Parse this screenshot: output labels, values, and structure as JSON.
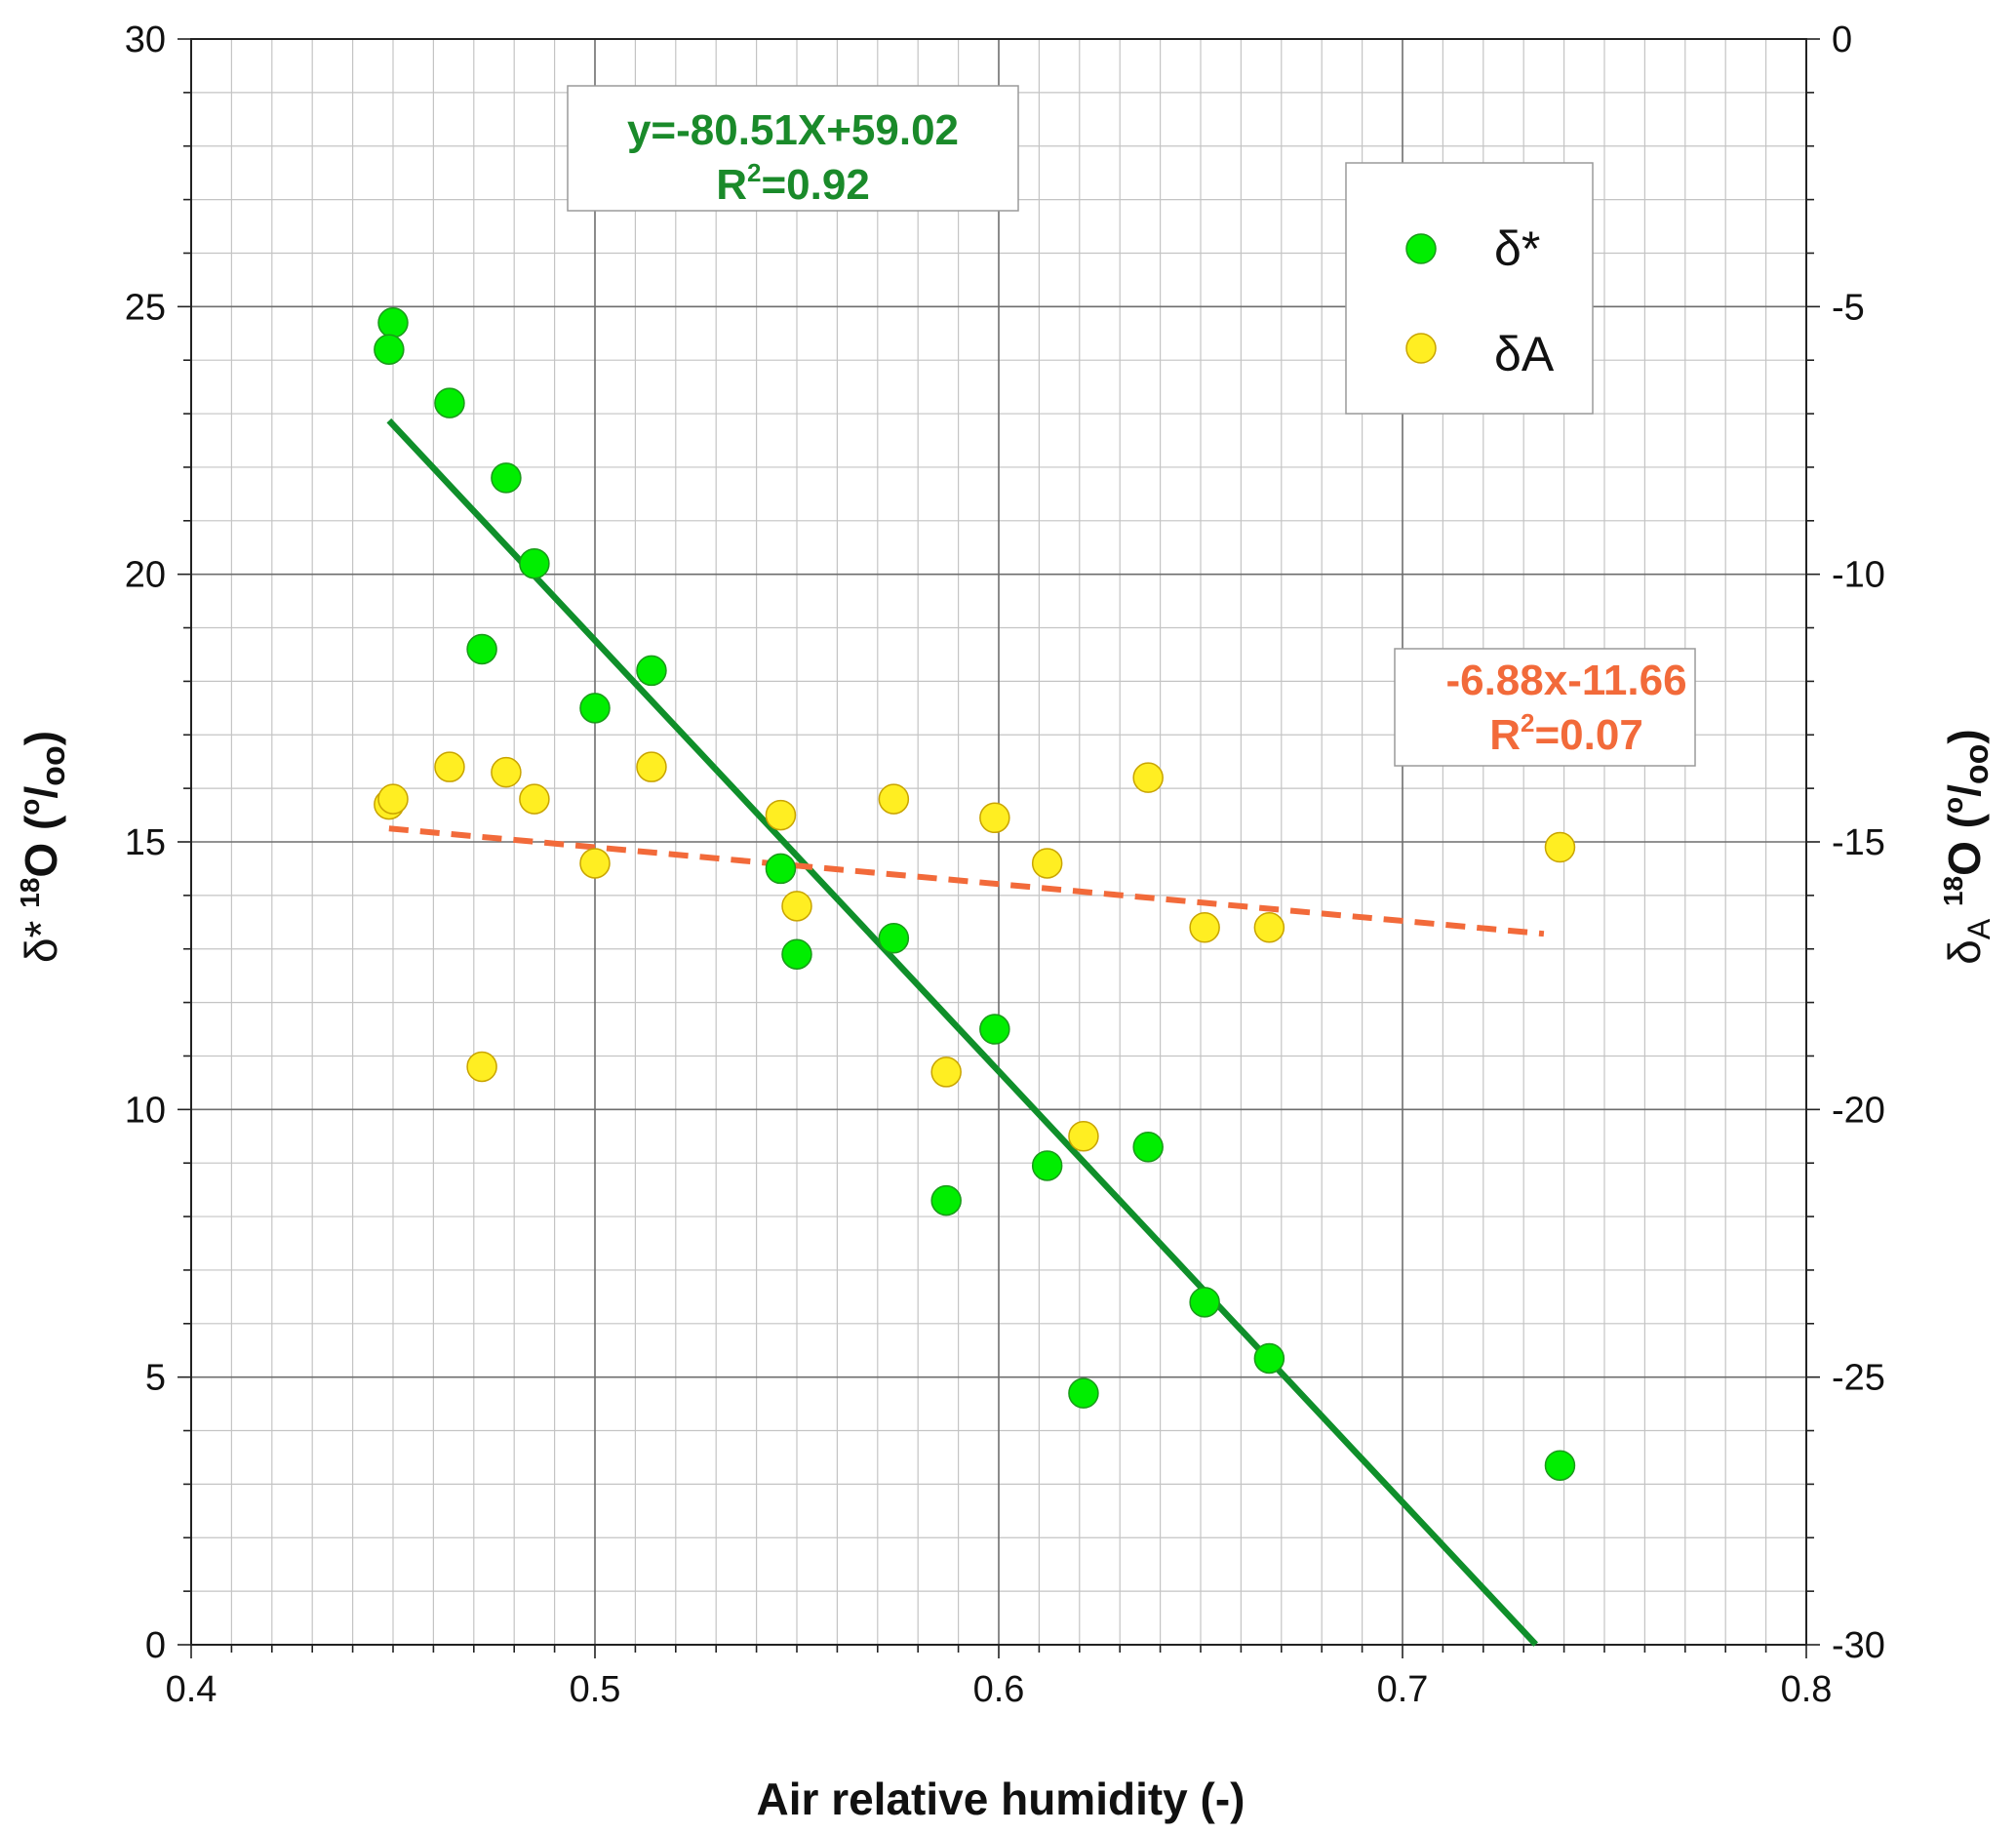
{
  "chart_data": {
    "type": "scatter",
    "xlabel": "Air relative humidity (-)",
    "ylabel_left": {
      "symbol": "δ",
      "sub": "*",
      "sup": "18",
      "text": "O (",
      "unit_sup": "o",
      "slash": "/",
      "unit_sub": "oo",
      "close": ")"
    },
    "ylabel_right": {
      "symbol": "δ",
      "sub": "A",
      "sup": "18",
      "text": "O (",
      "unit_sup": "o",
      "slash": "/",
      "unit_sub": "oo",
      "close": ")"
    },
    "xlim": [
      0.4,
      0.8
    ],
    "ylim_left": [
      0,
      30
    ],
    "ylim_right": [
      -30,
      0
    ],
    "x_ticks": [
      "0.4",
      "0.5",
      "0.6",
      "0.7",
      "0.8"
    ],
    "y_ticks_left": [
      "0",
      "5",
      "10",
      "15",
      "20",
      "25",
      "30"
    ],
    "y_ticks_right": [
      "-30",
      "-25",
      "-20",
      "-15",
      "-10",
      "-5",
      "0"
    ],
    "grid": true,
    "legend_position": "top-right",
    "series": [
      {
        "name": "δ*",
        "legend_symbol": "δ",
        "legend_suffix": "*",
        "axis": "left",
        "color": "#00ee00",
        "edge": "#1a9a1a",
        "points": [
          [
            0.45,
            24.7
          ],
          [
            0.449,
            24.2
          ],
          [
            0.464,
            23.2
          ],
          [
            0.478,
            21.8
          ],
          [
            0.485,
            20.2
          ],
          [
            0.472,
            18.6
          ],
          [
            0.514,
            18.2
          ],
          [
            0.5,
            17.5
          ],
          [
            0.546,
            14.5
          ],
          [
            0.55,
            12.9
          ],
          [
            0.574,
            13.2
          ],
          [
            0.599,
            11.5
          ],
          [
            0.587,
            8.3
          ],
          [
            0.612,
            8.95
          ],
          [
            0.637,
            9.3
          ],
          [
            0.621,
            4.7
          ],
          [
            0.651,
            6.4
          ],
          [
            0.667,
            5.35
          ],
          [
            0.739,
            3.35
          ]
        ]
      },
      {
        "name": "δA",
        "legend_symbol": "δ",
        "legend_suffix": "A",
        "axis": "right",
        "color": "#ffee22",
        "edge": "#c9a400",
        "points": [
          [
            0.449,
            -14.3
          ],
          [
            0.45,
            -14.2
          ],
          [
            0.464,
            -13.6
          ],
          [
            0.478,
            -13.7
          ],
          [
            0.485,
            -14.2
          ],
          [
            0.472,
            -19.2
          ],
          [
            0.5,
            -15.4
          ],
          [
            0.514,
            -13.6
          ],
          [
            0.546,
            -14.5
          ],
          [
            0.55,
            -16.2
          ],
          [
            0.574,
            -14.2
          ],
          [
            0.599,
            -14.55
          ],
          [
            0.587,
            -19.3
          ],
          [
            0.612,
            -15.4
          ],
          [
            0.621,
            -20.5
          ],
          [
            0.637,
            -13.8
          ],
          [
            0.651,
            -16.6
          ],
          [
            0.667,
            -16.6
          ],
          [
            0.739,
            -15.1
          ]
        ]
      }
    ],
    "fits": [
      {
        "series": "δ*",
        "axis": "left",
        "slope": -80.51,
        "intercept": 59.02,
        "x_range": [
          0.449,
          0.733
        ],
        "color": "#0f8f2a",
        "style": "solid"
      },
      {
        "series": "δA",
        "axis": "right",
        "slope": -6.88,
        "intercept": -11.66,
        "x_range": [
          0.449,
          0.735
        ],
        "color": "#f26a3a",
        "style": "dashed"
      }
    ],
    "annotations": [
      {
        "line1": "y=-80.51X+59.02",
        "line2_prefix": "R",
        "line2_sup": "2",
        "line2_suffix": "=0.92",
        "color": "#1a8a2a"
      },
      {
        "line1": "-6.88x-11.66",
        "line2_prefix": "R",
        "line2_sup": "2",
        "line2_suffix": "=0.07",
        "color": "#f26a3a"
      }
    ]
  }
}
